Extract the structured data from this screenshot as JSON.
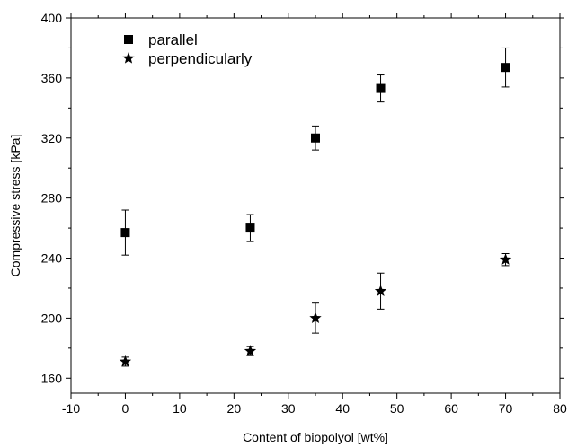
{
  "chart_data": {
    "type": "scatter",
    "xlabel": "Content of biopolyol [wt%]",
    "ylabel": "Compressive stress [kPa]",
    "xlim": [
      -10,
      80
    ],
    "ylim": [
      150,
      400
    ],
    "xticks": [
      -10,
      0,
      10,
      20,
      30,
      40,
      50,
      60,
      70,
      80
    ],
    "yticks": [
      160,
      200,
      240,
      280,
      320,
      360,
      400
    ],
    "grid": false,
    "legend_position": "top-left",
    "series": [
      {
        "name": "parallel",
        "marker": "square",
        "color": "#000000",
        "points": [
          {
            "x": 0,
            "y": 257,
            "err": 15
          },
          {
            "x": 23,
            "y": 260,
            "err": 9
          },
          {
            "x": 35,
            "y": 320,
            "err": 8
          },
          {
            "x": 47,
            "y": 353,
            "err": 9
          },
          {
            "x": 70,
            "y": 367,
            "err": 13
          }
        ]
      },
      {
        "name": "perpendicularly",
        "marker": "star",
        "color": "#000000",
        "points": [
          {
            "x": 0,
            "y": 171,
            "err": 3
          },
          {
            "x": 23,
            "y": 178,
            "err": 3
          },
          {
            "x": 35,
            "y": 200,
            "err": 10
          },
          {
            "x": 47,
            "y": 218,
            "err": 12
          },
          {
            "x": 70,
            "y": 239,
            "err": 4
          }
        ]
      }
    ]
  }
}
